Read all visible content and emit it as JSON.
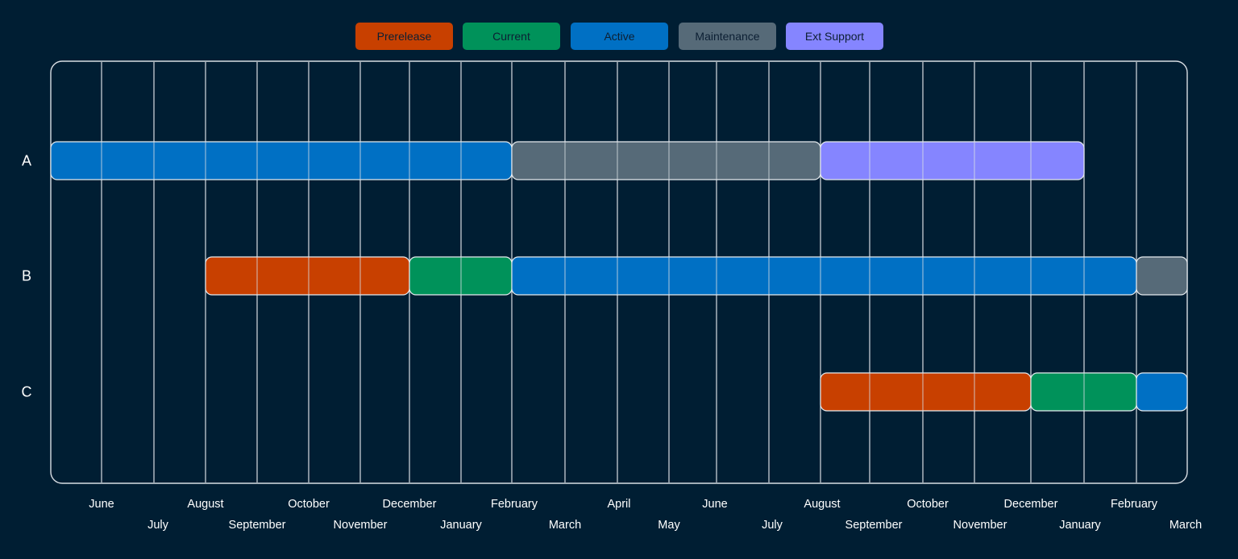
{
  "chart_data": {
    "type": "gantt",
    "legend": [
      {
        "name": "Prerelease",
        "color": "#c84000"
      },
      {
        "name": "Current",
        "color": "#00925a"
      },
      {
        "name": "Active",
        "color": "#0070c4"
      },
      {
        "name": "Maintenance",
        "color": "#566a78"
      },
      {
        "name": "Ext Support",
        "color": "#8585ff"
      }
    ],
    "rows": [
      "A",
      "B",
      "C"
    ],
    "months": [
      "June",
      "July",
      "August",
      "September",
      "October",
      "November",
      "December",
      "January",
      "February",
      "March",
      "April",
      "May",
      "June",
      "July",
      "August",
      "September",
      "October",
      "November",
      "December",
      "January",
      "February",
      "March"
    ],
    "bars": [
      {
        "row": "A",
        "phase": "Active",
        "start": "May",
        "end": "February"
      },
      {
        "row": "A",
        "phase": "Maintenance",
        "start": "February",
        "end": "August"
      },
      {
        "row": "A",
        "phase": "Ext Support",
        "start": "August",
        "end": "January (mid)"
      },
      {
        "row": "B",
        "phase": "Prerelease",
        "start": "August",
        "end": "December"
      },
      {
        "row": "B",
        "phase": "Current",
        "start": "December",
        "end": "February"
      },
      {
        "row": "B",
        "phase": "Active",
        "start": "February",
        "end": "February"
      },
      {
        "row": "B",
        "phase": "Maintenance",
        "start": "February",
        "end": "March"
      },
      {
        "row": "C",
        "phase": "Prerelease",
        "start": "August",
        "end": "December"
      },
      {
        "row": "C",
        "phase": "Current",
        "start": "December",
        "end": "February"
      },
      {
        "row": "C",
        "phase": "Active",
        "start": "February",
        "end": "March"
      }
    ],
    "grid": true,
    "legend_position": "top-center",
    "title": ""
  }
}
